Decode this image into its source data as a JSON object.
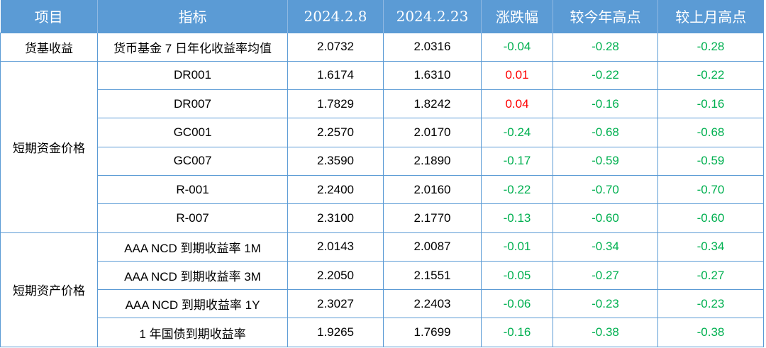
{
  "headers": [
    "项目",
    "指标",
    "2024.2.8",
    "2024.2.23",
    "涨跌幅",
    "较今年高点",
    "较上月高点"
  ],
  "groups": [
    {
      "name": "货基收益",
      "rows": [
        {
          "indicator": "货币基金 7 日年化收益率均值",
          "v1": "2.0732",
          "v2": "2.0316",
          "chg": "-0.04",
          "vs_year_high": "-0.28",
          "vs_month_high": "-0.28"
        }
      ]
    },
    {
      "name": "短期资金价格",
      "rows": [
        {
          "indicator": "DR001",
          "v1": "1.6174",
          "v2": "1.6310",
          "chg": "0.01",
          "vs_year_high": "-0.22",
          "vs_month_high": "-0.22"
        },
        {
          "indicator": "DR007",
          "v1": "1.7829",
          "v2": "1.8242",
          "chg": "0.04",
          "vs_year_high": "-0.16",
          "vs_month_high": "-0.16"
        },
        {
          "indicator": "GC001",
          "v1": "2.2570",
          "v2": "2.0170",
          "chg": "-0.24",
          "vs_year_high": "-0.68",
          "vs_month_high": "-0.68"
        },
        {
          "indicator": "GC007",
          "v1": "2.3590",
          "v2": "2.1890",
          "chg": "-0.17",
          "vs_year_high": "-0.59",
          "vs_month_high": "-0.59"
        },
        {
          "indicator": "R-001",
          "v1": "2.2400",
          "v2": "2.0160",
          "chg": "-0.22",
          "vs_year_high": "-0.70",
          "vs_month_high": "-0.70"
        },
        {
          "indicator": "R-007",
          "v1": "2.3100",
          "v2": "2.1770",
          "chg": "-0.13",
          "vs_year_high": "-0.60",
          "vs_month_high": "-0.60"
        }
      ]
    },
    {
      "name": "短期资产价格",
      "rows": [
        {
          "indicator": "AAA NCD 到期收益率 1M",
          "v1": "2.0143",
          "v2": "2.0087",
          "chg": "-0.01",
          "vs_year_high": "-0.34",
          "vs_month_high": "-0.34"
        },
        {
          "indicator": "AAA NCD 到期收益率 3M",
          "v1": "2.2050",
          "v2": "2.1551",
          "chg": "-0.05",
          "vs_year_high": "-0.27",
          "vs_month_high": "-0.27"
        },
        {
          "indicator": "AAA NCD 到期收益率 1Y",
          "v1": "2.3027",
          "v2": "2.2403",
          "chg": "-0.06",
          "vs_year_high": "-0.23",
          "vs_month_high": "-0.23"
        },
        {
          "indicator": "1 年国债到期收益率",
          "v1": "1.9265",
          "v2": "1.7699",
          "chg": "-0.16",
          "vs_year_high": "-0.38",
          "vs_month_high": "-0.38"
        }
      ]
    }
  ],
  "colors": {
    "header_bg": "#5b9bd5",
    "border": "#5b9bd5",
    "rise": "#ff0000",
    "fall": "#00b050"
  }
}
